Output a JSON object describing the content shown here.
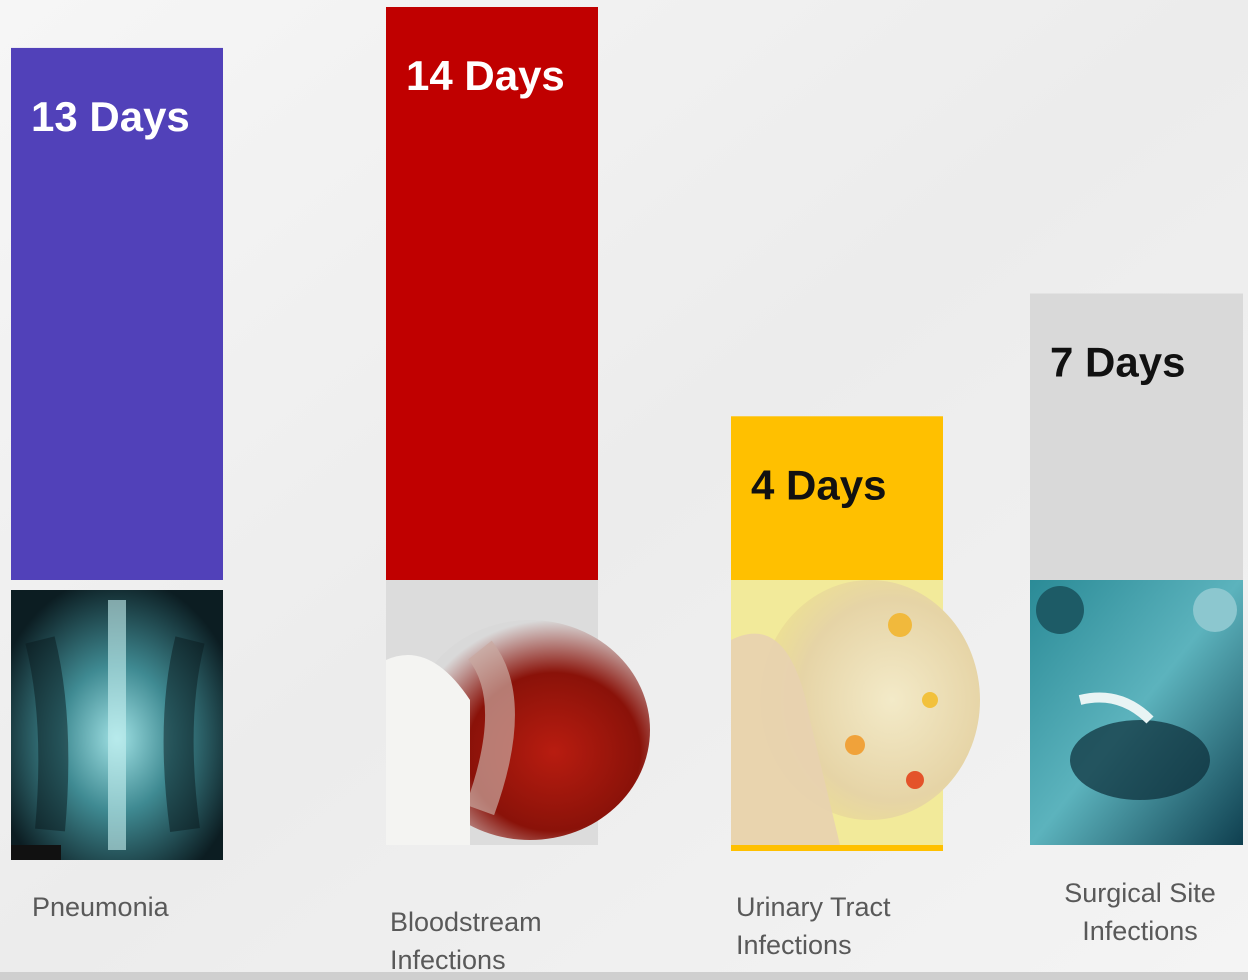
{
  "chart_data": {
    "type": "bar",
    "categories": [
      "Pneumonia",
      "Bloodstream Infections",
      "Urinary Tract Infections",
      "Surgical Site Infections"
    ],
    "values": [
      13,
      14,
      4,
      7
    ],
    "value_labels": [
      "13 Days",
      "14 Days",
      "4 Days",
      "7 Days"
    ],
    "colors": [
      "#5141b9",
      "#c00000",
      "#ffc000",
      "#d9d9d9"
    ],
    "ylim": [
      0,
      14
    ]
  }
}
